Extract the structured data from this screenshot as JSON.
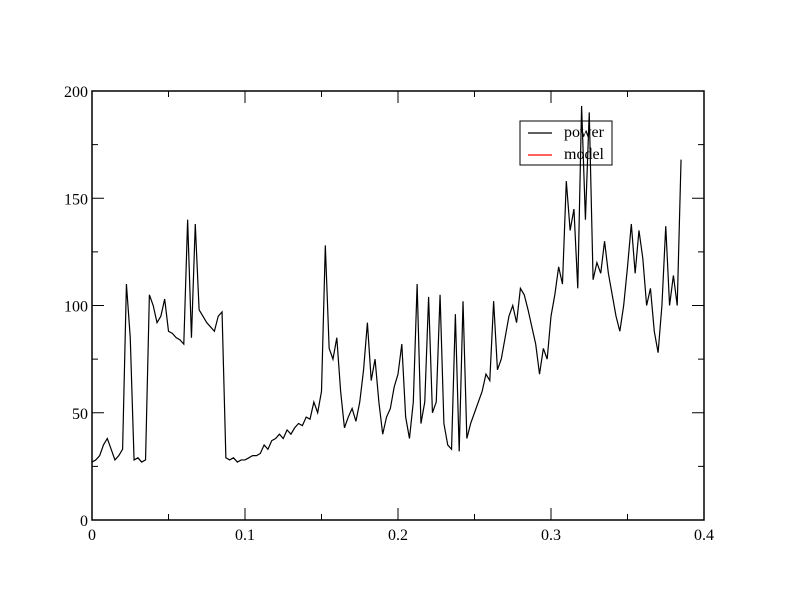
{
  "chart_data": {
    "type": "line",
    "x": [
      0,
      0.0025,
      0.005,
      0.0075,
      0.01,
      0.0125,
      0.015,
      0.0175,
      0.02,
      0.0225,
      0.025,
      0.0275,
      0.03,
      0.0325,
      0.035,
      0.0375,
      0.04,
      0.0425,
      0.045,
      0.0475,
      0.05,
      0.0525,
      0.055,
      0.0575,
      0.06,
      0.0625,
      0.065,
      0.0675,
      0.07,
      0.0725,
      0.075,
      0.0775,
      0.08,
      0.0825,
      0.085,
      0.0875,
      0.09,
      0.0925,
      0.095,
      0.0975,
      0.1,
      0.1025,
      0.105,
      0.1075,
      0.11,
      0.1125,
      0.115,
      0.1175,
      0.12,
      0.1225,
      0.125,
      0.1275,
      0.13,
      0.1325,
      0.135,
      0.1375,
      0.14,
      0.1425,
      0.145,
      0.1475,
      0.15,
      0.1525,
      0.155,
      0.1575,
      0.16,
      0.1625,
      0.165,
      0.1675,
      0.17,
      0.1725,
      0.175,
      0.1775,
      0.18,
      0.1825,
      0.185,
      0.1875,
      0.19,
      0.1925,
      0.195,
      0.1975,
      0.2,
      0.2025,
      0.205,
      0.2075,
      0.21,
      0.2125,
      0.215,
      0.2175,
      0.22,
      0.2225,
      0.225,
      0.2275,
      0.23,
      0.2325,
      0.235,
      0.2375,
      0.24,
      0.2425,
      0.245,
      0.2475,
      0.25,
      0.2525,
      0.255,
      0.2575,
      0.26,
      0.2625,
      0.265,
      0.2675,
      0.27,
      0.2725,
      0.275,
      0.2775,
      0.28,
      0.2825,
      0.285,
      0.2875,
      0.29,
      0.2925,
      0.295,
      0.2975,
      0.3,
      0.3025,
      0.305,
      0.3075,
      0.31,
      0.3125,
      0.315,
      0.3175,
      0.32,
      0.3225,
      0.325,
      0.3275,
      0.33,
      0.3325,
      0.335,
      0.3375,
      0.34,
      0.3425,
      0.345,
      0.3475,
      0.35,
      0.3525,
      0.355,
      0.3575,
      0.36,
      0.3625,
      0.365,
      0.3675,
      0.37,
      0.3725,
      0.375,
      0.3775,
      0.38,
      0.3825,
      0.385
    ],
    "series": [
      {
        "name": "power",
        "color": "#000000",
        "values": [
          27,
          28,
          30,
          35,
          38,
          33,
          28,
          30,
          33,
          110,
          85,
          28,
          29,
          27,
          28,
          105,
          100,
          92,
          95,
          103,
          88,
          87,
          85,
          84,
          82,
          140,
          85,
          138,
          98,
          95,
          92,
          90,
          88,
          95,
          97,
          29,
          28,
          29,
          27,
          28,
          28,
          29,
          30,
          30,
          31,
          35,
          33,
          37,
          38,
          40,
          38,
          42,
          40,
          43,
          45,
          44,
          48,
          47,
          55,
          50,
          60,
          128,
          80,
          75,
          85,
          60,
          43,
          48,
          52,
          46,
          55,
          70,
          92,
          65,
          75,
          55,
          40,
          48,
          52,
          62,
          68,
          82,
          48,
          38,
          55,
          110,
          45,
          55,
          104,
          50,
          55,
          105,
          45,
          35,
          33,
          96,
          32,
          102,
          38,
          45,
          50,
          55,
          60,
          68,
          65,
          102,
          70,
          75,
          85,
          95,
          100,
          92,
          108,
          105,
          98,
          90,
          82,
          68,
          80,
          75,
          95,
          105,
          118,
          110,
          158,
          135,
          145,
          108,
          193,
          140,
          190,
          112,
          120,
          115,
          130,
          115,
          105,
          95,
          88,
          100,
          118,
          138,
          115,
          135,
          122,
          100,
          108,
          88,
          78,
          100,
          137,
          100,
          114,
          100,
          168
        ]
      },
      {
        "name": "model",
        "color": "#ff0000",
        "values": [
          null,
          null,
          null,
          null,
          null,
          null,
          null,
          null,
          null,
          null,
          null,
          null,
          null,
          null,
          null,
          null,
          null,
          null,
          null,
          null,
          null,
          null,
          null,
          null,
          null,
          null,
          null,
          null,
          null,
          null,
          null,
          null,
          null,
          null,
          null,
          null,
          null,
          null,
          null,
          null,
          null,
          null,
          null,
          null,
          null,
          null,
          null,
          null,
          null,
          null,
          null,
          null,
          null,
          null,
          null,
          null,
          null,
          null,
          null,
          null,
          null,
          null,
          null,
          null,
          null,
          null,
          null,
          null,
          null,
          null,
          null,
          null,
          null,
          null,
          null,
          null,
          null,
          null,
          null,
          null,
          null,
          null,
          null,
          null,
          null,
          null,
          null,
          null,
          null,
          null,
          null,
          null,
          null,
          null,
          null,
          null,
          null,
          null,
          null,
          null,
          null,
          null,
          null,
          null,
          null,
          null,
          null,
          null,
          null,
          null,
          null,
          null,
          null,
          null,
          null,
          null,
          null,
          null,
          null,
          null,
          null,
          null,
          null,
          null,
          null,
          null,
          null,
          null,
          null,
          null,
          null,
          null,
          null,
          null,
          null,
          null,
          null,
          null,
          null,
          null,
          null,
          null,
          null,
          null,
          null,
          null,
          null,
          null,
          null,
          null,
          null,
          null,
          null,
          null,
          null
        ]
      }
    ],
    "xlim": [
      0,
      0.4
    ],
    "xticks": [
      0,
      0.1,
      0.2,
      0.3,
      0.4
    ],
    "ylim": [
      0,
      200
    ],
    "yticks": [
      0,
      50,
      100,
      150,
      200
    ]
  }
}
